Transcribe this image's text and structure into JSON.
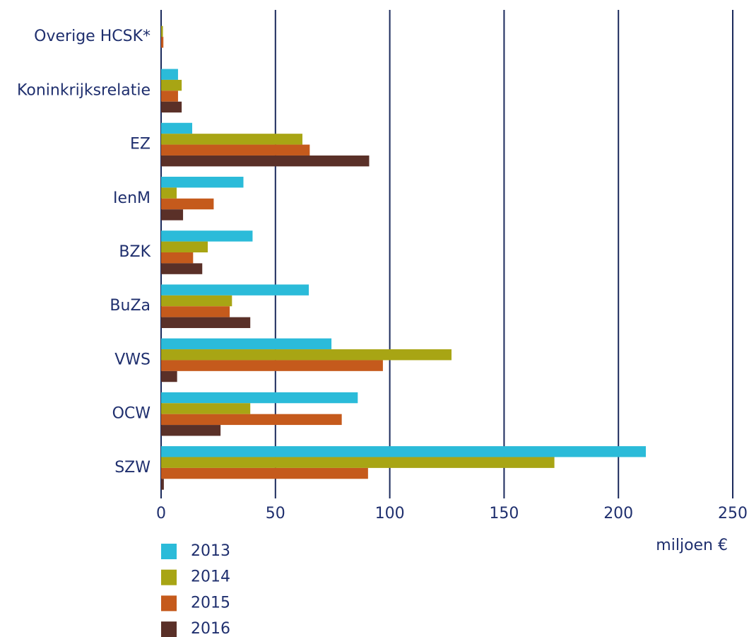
{
  "chart_data": {
    "type": "barh",
    "categories": [
      "Overige HCSK*",
      "Koninkrijksrelatie",
      "EZ",
      "IenM",
      "BZK",
      "BuZa",
      "VWS",
      "OCW",
      "SZW"
    ],
    "series": [
      {
        "name": "2013",
        "color": "#2bbbd9",
        "values": [
          0,
          7.4,
          13.6,
          36,
          40,
          64.6,
          74.5,
          86,
          212
        ]
      },
      {
        "name": "2014",
        "color": "#a8a514",
        "values": [
          0.8,
          9,
          61.8,
          6.8,
          20.4,
          31,
          127,
          39,
          172
        ]
      },
      {
        "name": "2015",
        "color": "#c55a1c",
        "values": [
          1,
          7.4,
          65,
          23,
          14,
          30,
          97,
          79,
          90.5
        ]
      },
      {
        "name": "2016",
        "color": "#5a3028",
        "values": [
          0,
          9,
          91,
          9.6,
          18,
          39,
          7,
          26,
          1.2
        ]
      }
    ],
    "xlabel": "miljoen €",
    "xlim": [
      0,
      250
    ],
    "xticks": [
      0,
      50,
      100,
      150,
      200,
      250
    ],
    "grid": true
  }
}
